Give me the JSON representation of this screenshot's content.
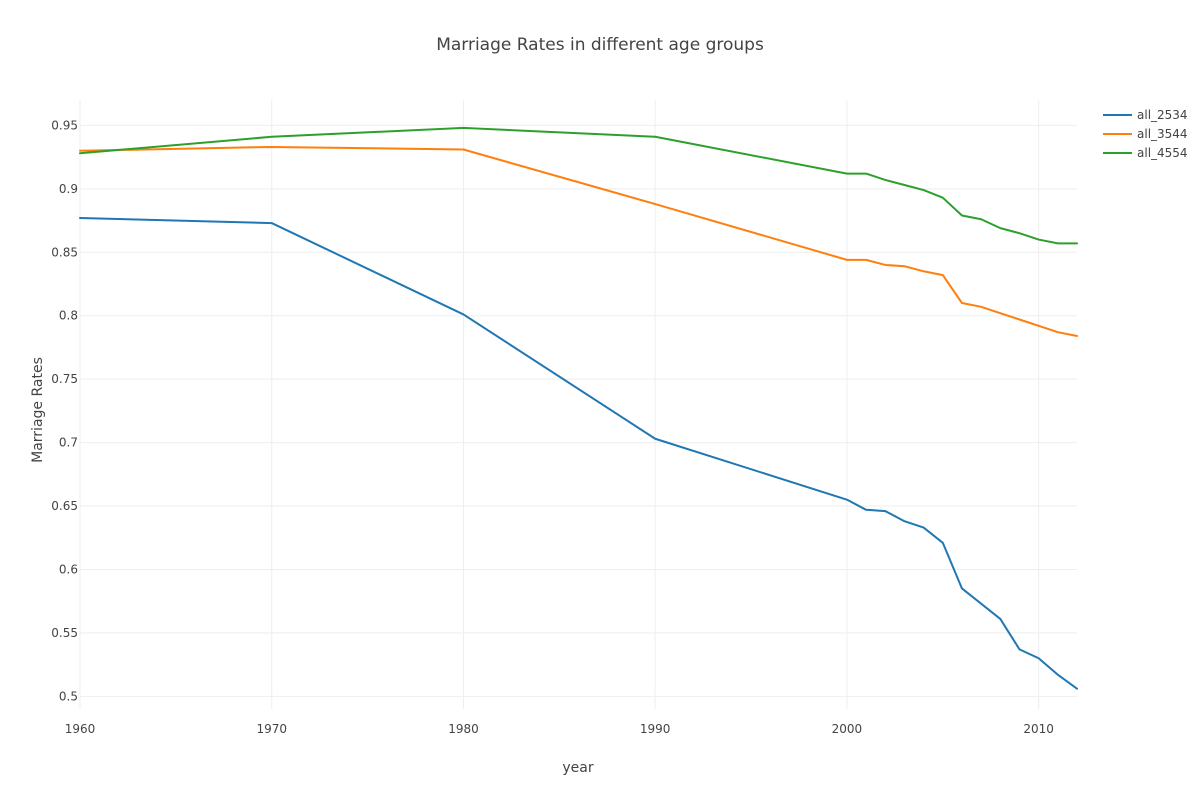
{
  "chart_data": {
    "type": "line",
    "title": "Marriage Rates in different age groups",
    "xlabel": "year",
    "ylabel": "Marriage Rates",
    "xlim": [
      1960,
      2012
    ],
    "ylim": [
      0.49,
      0.97
    ],
    "x_ticks": [
      1960,
      1970,
      1980,
      1990,
      2000,
      2010
    ],
    "y_ticks": [
      0.5,
      0.55,
      0.6,
      0.65,
      0.7,
      0.75,
      0.8,
      0.85,
      0.9,
      0.95
    ],
    "y_tick_labels": [
      "0.5",
      "0.55",
      "0.6",
      "0.65",
      "0.7",
      "0.75",
      "0.8",
      "0.85",
      "0.9",
      "0.95"
    ],
    "grid": true,
    "legend_position": "top-right",
    "x": [
      1960,
      1970,
      1980,
      1990,
      2000,
      2001,
      2002,
      2003,
      2004,
      2005,
      2006,
      2007,
      2008,
      2009,
      2010,
      2011,
      2012
    ],
    "series": [
      {
        "name": "all_2534",
        "color": "#1f77b4",
        "values": [
          0.877,
          0.873,
          0.801,
          0.703,
          0.655,
          0.647,
          0.646,
          0.638,
          0.633,
          0.621,
          0.585,
          0.573,
          0.561,
          0.537,
          0.53,
          0.517,
          0.506
        ]
      },
      {
        "name": "all_3544",
        "color": "#ff7f0e",
        "values": [
          0.93,
          0.933,
          0.931,
          0.888,
          0.844,
          0.844,
          0.84,
          0.839,
          0.835,
          0.832,
          0.81,
          0.807,
          0.802,
          0.797,
          0.792,
          0.787,
          0.784
        ]
      },
      {
        "name": "all_4554",
        "color": "#2ca02c",
        "values": [
          0.928,
          0.941,
          0.948,
          0.941,
          0.912,
          0.912,
          0.907,
          0.903,
          0.899,
          0.893,
          0.879,
          0.876,
          0.869,
          0.865,
          0.86,
          0.857,
          0.857
        ]
      }
    ]
  }
}
